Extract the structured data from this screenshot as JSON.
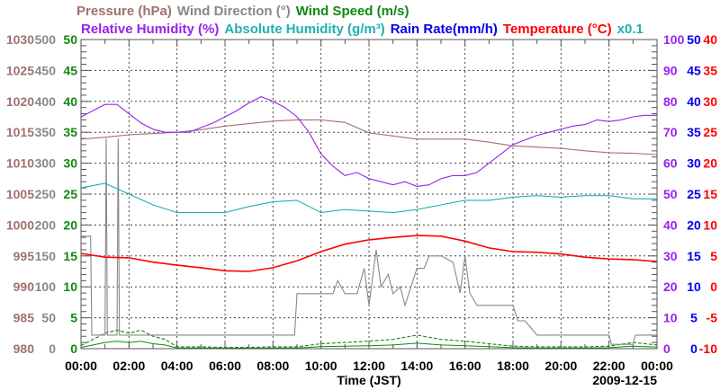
{
  "chart_data": {
    "type": "line",
    "date": "2009-12-15",
    "xlabel": "Time (JST)",
    "x_ticks": [
      "00:00",
      "02:00",
      "04:00",
      "06:00",
      "08:00",
      "10:00",
      "12:00",
      "14:00",
      "16:00",
      "18:00",
      "20:00",
      "22:00",
      "00:00"
    ],
    "x_range_hours": [
      0,
      24
    ],
    "grid": true,
    "legend": {
      "row1": [
        {
          "label": "Pressure (hPa)",
          "color": "#a07070"
        },
        {
          "label": "Wind Direction (°)",
          "color": "#888888"
        },
        {
          "label": "Wind Speed (m/s)",
          "color": "#118811"
        }
      ],
      "row2": [
        {
          "label": "Relative Humidity (%)",
          "color": "#9922ee"
        },
        {
          "label": "Absolute Humidity (g/m³)",
          "color": "#22b0b0"
        },
        {
          "label": "Rain Rate(mm/h)",
          "color": "#0000ee"
        },
        {
          "label": "Temperature (°C)",
          "color": "#ff0000"
        },
        {
          "label": "x0.1",
          "color": "#22b0b0"
        }
      ]
    },
    "axes": {
      "pressure": {
        "side": "left",
        "range": [
          980,
          1030
        ],
        "ticks": [
          "1030",
          "1025",
          "1020",
          "1015",
          "1010",
          "1005",
          "1000",
          "995",
          "990",
          "985",
          "980"
        ],
        "color": "#a07070"
      },
      "wind_direction": {
        "side": "left",
        "range": [
          0,
          500
        ],
        "ticks": [
          "500",
          "450",
          "400",
          "350",
          "300",
          "250",
          "200",
          "150",
          "100",
          "50",
          "0"
        ],
        "color": "#888888"
      },
      "wind_speed": {
        "side": "left",
        "range": [
          0,
          50
        ],
        "ticks": [
          "50",
          "45",
          "40",
          "35",
          "30",
          "25",
          "20",
          "15",
          "10",
          "5",
          "0"
        ],
        "color": "#118811"
      },
      "relative_humidity": {
        "side": "right",
        "range": [
          0,
          100
        ],
        "ticks": [
          "100",
          "90",
          "80",
          "70",
          "60",
          "50",
          "40",
          "30",
          "20",
          "10",
          "0"
        ],
        "color": "#9922ee"
      },
      "rain_rate": {
        "side": "right",
        "range": [
          0,
          50
        ],
        "ticks": [
          "50",
          "45",
          "40",
          "35",
          "30",
          "25",
          "20",
          "15",
          "10",
          "5",
          "0"
        ],
        "color": "#0000ee"
      },
      "temperature": {
        "side": "right",
        "range": [
          -10,
          40
        ],
        "ticks": [
          "40",
          "35",
          "30",
          "25",
          "20",
          "15",
          "10",
          "5",
          "0",
          "-5",
          "-10"
        ],
        "color": "#ff0000"
      }
    },
    "series": [
      {
        "name": "Pressure",
        "axis": "pressure",
        "color": "#a07070",
        "x": [
          0,
          1,
          2,
          3,
          4,
          5,
          6,
          7,
          8,
          9,
          10,
          11,
          12,
          13,
          14,
          15,
          16,
          17,
          18,
          19,
          20,
          21,
          22,
          23,
          24
        ],
        "values": [
          1013.9,
          1014.2,
          1014.6,
          1014.8,
          1015.0,
          1015.4,
          1016.0,
          1016.4,
          1016.8,
          1017.0,
          1017.0,
          1016.6,
          1014.9,
          1014.4,
          1013.9,
          1013.9,
          1013.9,
          1013.4,
          1012.8,
          1012.6,
          1012.4,
          1012.0,
          1011.7,
          1011.6,
          1011.4
        ]
      },
      {
        "name": "Relative Humidity",
        "axis": "relative_humidity",
        "color": "#9922ee",
        "x": [
          0,
          0.5,
          1,
          1.5,
          2,
          2.5,
          3,
          3.5,
          4,
          4.5,
          5,
          5.5,
          6,
          6.5,
          7,
          7.5,
          8,
          8.5,
          9,
          9.5,
          10,
          10.5,
          11,
          11.5,
          12,
          12.5,
          13,
          13.5,
          14,
          14.5,
          15,
          15.5,
          16,
          16.5,
          17,
          17.5,
          18,
          18.5,
          19,
          19.5,
          20,
          20.5,
          21,
          21.5,
          22,
          22.5,
          23,
          23.5,
          24
        ],
        "values": [
          75,
          77,
          79,
          79,
          76,
          73,
          71,
          70,
          70,
          70,
          71.5,
          73,
          75,
          77,
          79.5,
          81.5,
          80,
          78,
          75,
          70,
          63,
          59,
          56,
          57,
          55,
          54,
          53,
          54,
          52.5,
          53,
          55,
          56,
          56,
          57,
          60,
          63,
          66,
          67.5,
          69,
          70,
          71,
          72,
          72.5,
          74,
          73.5,
          74,
          75,
          75.5,
          75.5
        ]
      },
      {
        "name": "Absolute Humidity x0.1",
        "axis": "relative_humidity",
        "scale": 0.1,
        "color": "#22b0b0",
        "x": [
          0,
          1,
          2,
          3,
          4,
          5,
          6,
          7,
          8,
          9,
          10,
          11,
          12,
          13,
          14,
          15,
          16,
          17,
          18,
          19,
          20,
          21,
          22,
          23,
          24
        ],
        "values": [
          5.2,
          5.35,
          5.0,
          4.65,
          4.4,
          4.4,
          4.4,
          4.6,
          4.75,
          4.8,
          4.4,
          4.5,
          4.45,
          4.4,
          4.5,
          4.65,
          4.8,
          4.8,
          4.9,
          4.95,
          4.9,
          4.95,
          4.95,
          4.85,
          4.85
        ]
      },
      {
        "name": "Temperature",
        "axis": "temperature",
        "color": "#ff0000",
        "x": [
          0,
          1,
          2,
          3,
          4,
          5,
          6,
          7,
          8,
          9,
          10,
          11,
          12,
          13,
          14,
          15,
          16,
          17,
          18,
          19,
          20,
          21,
          22,
          23,
          24
        ],
        "values": [
          5.4,
          4.8,
          4.7,
          4.0,
          3.5,
          3.1,
          2.6,
          2.5,
          3.1,
          4.2,
          5.7,
          6.9,
          7.6,
          8.0,
          8.3,
          8.2,
          7.4,
          6.3,
          5.7,
          5.6,
          5.3,
          4.8,
          4.5,
          4.4,
          4.1
        ]
      },
      {
        "name": "Wind Direction",
        "axis": "wind_direction",
        "color": "#888888",
        "x": [
          0,
          0.4,
          0.45,
          1.0,
          1.05,
          1.1,
          1.5,
          1.55,
          1.6,
          2,
          4,
          8.9,
          9,
          10.5,
          10.7,
          11,
          11.5,
          11.8,
          12,
          12.3,
          12.5,
          12.8,
          13,
          13.3,
          13.5,
          14,
          14.3,
          14.5,
          15,
          15.5,
          15.8,
          16,
          16.2,
          16.5,
          17,
          18,
          18.2,
          18.5,
          19,
          22,
          22.1,
          23,
          23.1,
          24
        ],
        "values": [
          182,
          182,
          22,
          22,
          340,
          22,
          22,
          340,
          22,
          22,
          22,
          22,
          89,
          89,
          110,
          89,
          89,
          130,
          70,
          160,
          100,
          120,
          89,
          100,
          70,
          130,
          130,
          150,
          150,
          140,
          90,
          150,
          90,
          70,
          70,
          70,
          45,
          45,
          22,
          22,
          7,
          7,
          22,
          22
        ]
      },
      {
        "name": "Wind Speed",
        "axis": "wind_speed",
        "color": "#118811",
        "x": [
          0,
          0.5,
          1,
          1.5,
          2,
          2.5,
          3,
          3.5,
          4,
          5,
          6,
          7,
          8,
          9,
          10,
          11,
          12,
          13,
          14,
          15,
          16,
          17,
          18,
          19,
          20,
          21,
          22,
          23,
          24
        ],
        "values": [
          0.5,
          1.5,
          2.5,
          3.0,
          2.5,
          3.0,
          2.0,
          1.5,
          0.3,
          0.3,
          0.2,
          0.2,
          0.3,
          0.3,
          0.8,
          1.0,
          1.2,
          1.5,
          2.2,
          1.5,
          1.2,
          0.8,
          0.4,
          0.3,
          0.3,
          0.3,
          0.4,
          1.0,
          0.6
        ]
      },
      {
        "name": "Rain Rate",
        "axis": "rain_rate",
        "color": "#0000ee",
        "x": [
          0,
          24
        ],
        "values": [
          0,
          0
        ]
      }
    ]
  }
}
